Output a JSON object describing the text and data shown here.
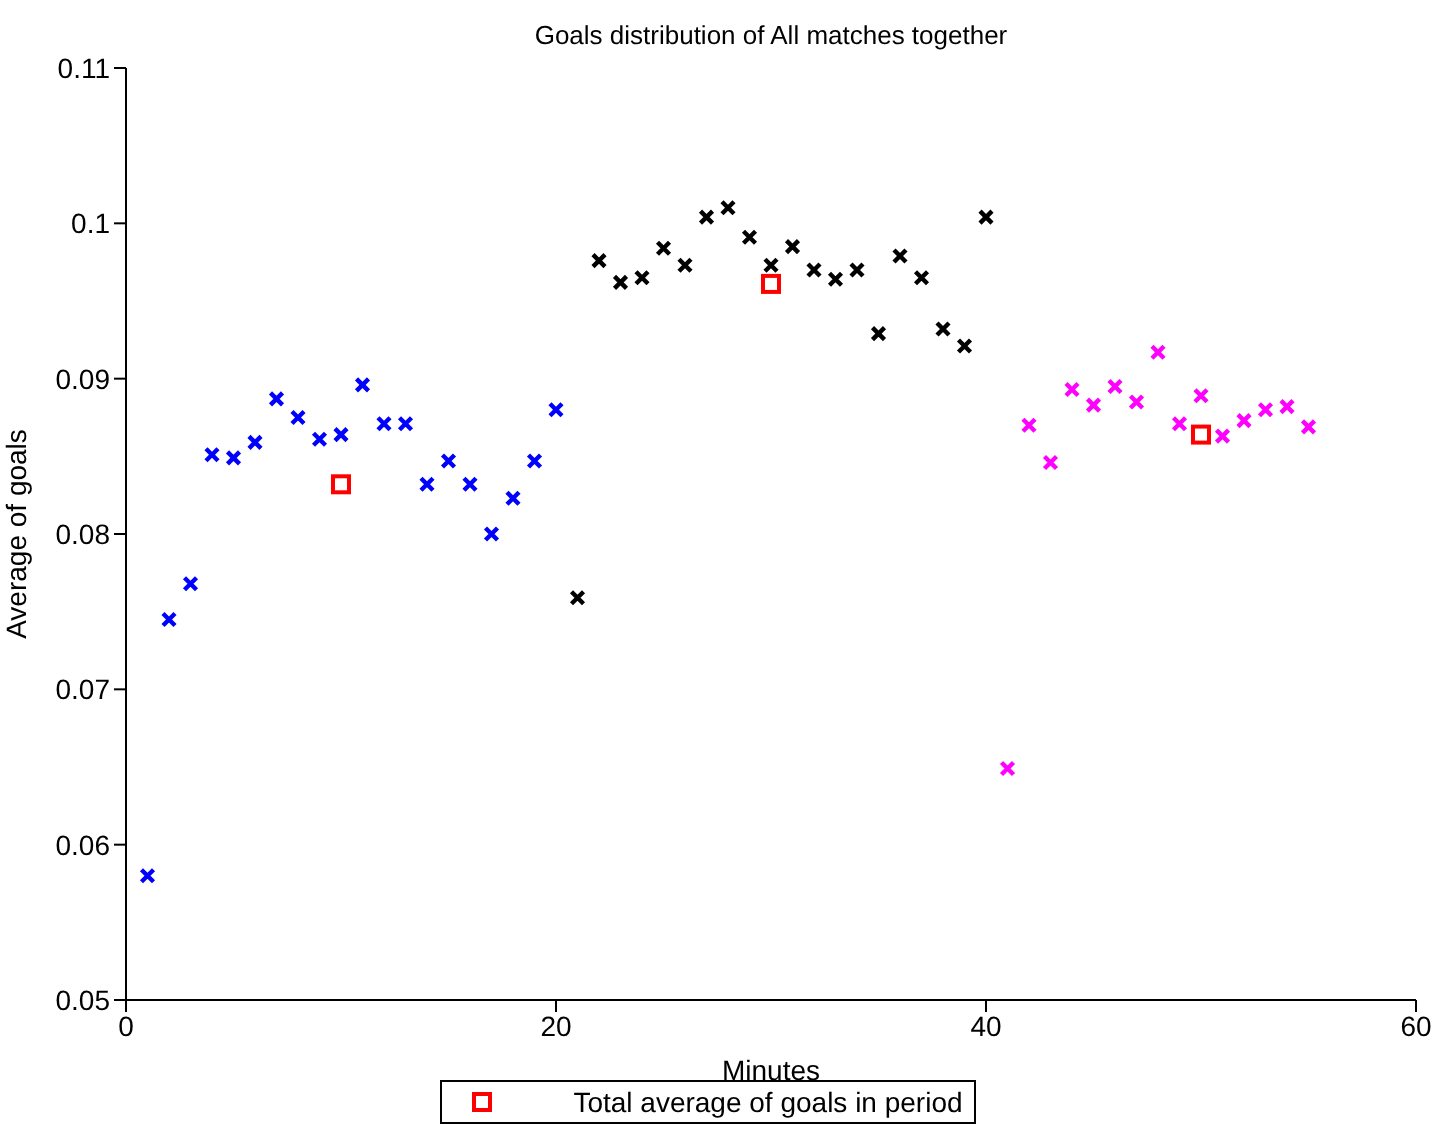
{
  "chart_data": {
    "type": "scatter",
    "title": "Goals distribution of All matches together",
    "xlabel": "Minutes",
    "ylabel": "Average of goals",
    "xlim": [
      0,
      60
    ],
    "xticks": [
      0,
      20,
      40,
      60
    ],
    "ylim": [
      0.05,
      0.11
    ],
    "yticks": [
      0.05,
      0.06,
      0.07,
      0.08,
      0.09,
      0.1,
      0.11
    ],
    "grid": false,
    "legend": "bottom",
    "series": [
      {
        "color": "#0000ff",
        "marker": "cross",
        "x": [
          1,
          2,
          3,
          4,
          5,
          6,
          7,
          8,
          9,
          10,
          11,
          12,
          13,
          14,
          15,
          16,
          17,
          18,
          19,
          20
        ],
        "values": [
          0.058,
          0.0745,
          0.0768,
          0.0851,
          0.0849,
          0.0859,
          0.0887,
          0.0875,
          0.0861,
          0.0864,
          0.0896,
          0.0871,
          0.0871,
          0.0832,
          0.0847,
          0.0832,
          0.08,
          0.0823,
          0.0847,
          0.088
        ]
      },
      {
        "color": "#000000",
        "marker": "cross",
        "x": [
          21,
          22,
          23,
          24,
          25,
          26,
          27,
          28,
          29,
          30,
          31,
          32,
          33,
          34,
          35,
          36,
          37,
          38,
          39,
          40
        ],
        "values": [
          0.0759,
          0.0976,
          0.0962,
          0.0965,
          0.0984,
          0.0973,
          0.1004,
          0.101,
          0.0991,
          0.0973,
          0.0985,
          0.097,
          0.0964,
          0.097,
          0.0929,
          0.0979,
          0.0965,
          0.0932,
          0.0921,
          0.1004
        ]
      },
      {
        "color": "#ff00ff",
        "marker": "cross",
        "x": [
          41,
          42,
          43,
          44,
          45,
          46,
          47,
          48,
          49,
          50,
          51,
          52,
          53,
          54,
          55
        ],
        "values": [
          0.0649,
          0.087,
          0.0846,
          0.0893,
          0.0883,
          0.0895,
          0.0885,
          0.0917,
          0.0871,
          0.0889,
          0.0863,
          0.0873,
          0.088,
          0.0882,
          0.0869
        ]
      },
      {
        "name": "Total average of goals in period",
        "color": "#ff0000",
        "marker": "square",
        "x": [
          10,
          30,
          50
        ],
        "values": [
          0.0832,
          0.0961,
          0.0864
        ]
      }
    ]
  }
}
